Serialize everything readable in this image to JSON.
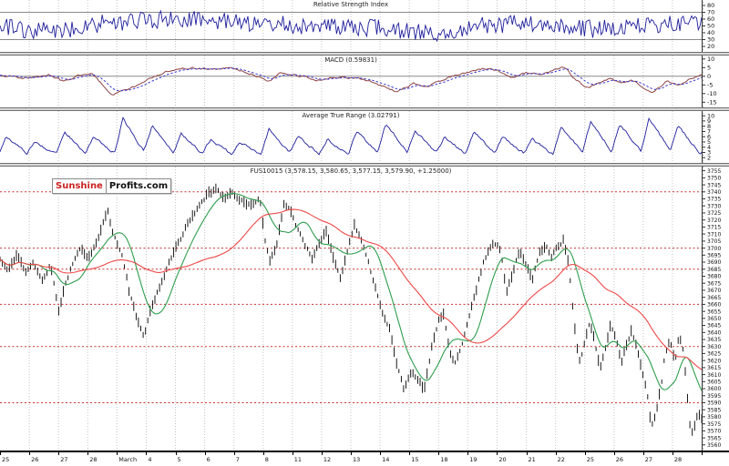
{
  "logo": {
    "part1": "Sunshine",
    "part2": "Profits.com"
  },
  "x_axis": {
    "labels": [
      "25",
      "26",
      "27",
      "28",
      "March",
      "4",
      "5",
      "6",
      "7",
      "8",
      "11",
      "12",
      "13",
      "14",
      "15",
      "18",
      "19",
      "20",
      "21",
      "22",
      "25",
      "26",
      "27",
      "28"
    ]
  },
  "chart_data": {
    "type": "multi-panel-financial",
    "days": 24,
    "rsi": {
      "type": "line",
      "title": "Relative Strength Index",
      "color": "#1e1e9c",
      "ylim": [
        12,
        88
      ],
      "yticks": [
        80,
        70,
        60,
        50,
        40,
        30,
        20
      ],
      "minor_step": 5,
      "hlines": [
        70,
        30
      ],
      "seed": 7,
      "noise_amp": 13,
      "points": 420,
      "smooth": false,
      "anchors": [
        [
          0,
          48
        ],
        [
          0.08,
          42
        ],
        [
          0.15,
          55
        ],
        [
          0.25,
          60
        ],
        [
          0.35,
          55
        ],
        [
          0.45,
          50
        ],
        [
          0.55,
          46
        ],
        [
          0.62,
          40
        ],
        [
          0.7,
          52
        ],
        [
          0.78,
          55
        ],
        [
          0.85,
          45
        ],
        [
          0.92,
          50
        ],
        [
          1,
          55
        ]
      ]
    },
    "macd": {
      "type": "line",
      "title": "MACD (0.59831)",
      "last_value": "0.59831",
      "color": "#8f4444",
      "signal_color": "#3b3bd0",
      "ylim": [
        -18,
        12
      ],
      "yticks": [
        10,
        5,
        0,
        -5,
        -10,
        -15
      ],
      "minor_step": 2.5,
      "hlines": [
        0
      ],
      "seed": 11,
      "noise_amp": 0.9,
      "points": 420,
      "smooth": true,
      "anchors": [
        [
          0,
          0.5
        ],
        [
          0.04,
          -1
        ],
        [
          0.07,
          1
        ],
        [
          0.09,
          -3
        ],
        [
          0.11,
          0.5
        ],
        [
          0.13,
          2
        ],
        [
          0.16,
          -11
        ],
        [
          0.19,
          -6
        ],
        [
          0.21,
          -2
        ],
        [
          0.24,
          3
        ],
        [
          0.27,
          5
        ],
        [
          0.3,
          4
        ],
        [
          0.33,
          4.5
        ],
        [
          0.36,
          1
        ],
        [
          0.385,
          -3
        ],
        [
          0.4,
          2
        ],
        [
          0.42,
          1
        ],
        [
          0.45,
          -2
        ],
        [
          0.47,
          -1
        ],
        [
          0.49,
          -0.5
        ],
        [
          0.52,
          -2
        ],
        [
          0.55,
          -6
        ],
        [
          0.565,
          -9
        ],
        [
          0.59,
          -4
        ],
        [
          0.61,
          -6
        ],
        [
          0.63,
          -2
        ],
        [
          0.66,
          2
        ],
        [
          0.69,
          4.5
        ],
        [
          0.71,
          3
        ],
        [
          0.73,
          -1
        ],
        [
          0.75,
          2
        ],
        [
          0.77,
          1
        ],
        [
          0.79,
          4
        ],
        [
          0.805,
          5.5
        ],
        [
          0.82,
          -2
        ],
        [
          0.84,
          -7
        ],
        [
          0.855,
          -3
        ],
        [
          0.87,
          -1
        ],
        [
          0.885,
          -4
        ],
        [
          0.9,
          -2
        ],
        [
          0.915,
          -6
        ],
        [
          0.93,
          -9
        ],
        [
          0.95,
          -3
        ],
        [
          0.97,
          -5
        ],
        [
          0.985,
          -1
        ],
        [
          1,
          0.6
        ]
      ]
    },
    "atr": {
      "type": "line",
      "title": "Average True Range (3.02791)",
      "last_value": "3.02791",
      "color": "#1e1e9c",
      "ylim": [
        1.0,
        10.9
      ],
      "yticks": [
        10,
        9,
        8,
        7,
        6,
        5,
        4,
        3,
        2
      ],
      "minor_step": 0.5,
      "hlines": [],
      "seed": 23,
      "noise_amp": 0.35,
      "points": 520,
      "smooth": true,
      "anchors": [
        [
          0,
          3
        ],
        [
          0.0083,
          6
        ],
        [
          0.0383,
          2.8
        ],
        [
          0.05,
          5
        ],
        [
          0.08,
          2.7
        ],
        [
          0.0917,
          7
        ],
        [
          0.1217,
          2.9
        ],
        [
          0.1333,
          6
        ],
        [
          0.1633,
          2.8
        ],
        [
          0.175,
          9.5
        ],
        [
          0.205,
          3.2
        ],
        [
          0.2167,
          8
        ],
        [
          0.2467,
          3
        ],
        [
          0.2583,
          6.5
        ],
        [
          0.2883,
          2.8
        ],
        [
          0.3,
          5.5
        ],
        [
          0.33,
          2.7
        ],
        [
          0.3417,
          5
        ],
        [
          0.3717,
          2.6
        ],
        [
          0.3833,
          7.5
        ],
        [
          0.4133,
          3
        ],
        [
          0.425,
          6
        ],
        [
          0.455,
          2.8
        ],
        [
          0.4667,
          5.5
        ],
        [
          0.4967,
          2.7
        ],
        [
          0.5083,
          7
        ],
        [
          0.5383,
          3
        ],
        [
          0.55,
          8.5
        ],
        [
          0.58,
          3.2
        ],
        [
          0.5917,
          7
        ],
        [
          0.6217,
          3
        ],
        [
          0.6333,
          6
        ],
        [
          0.6633,
          2.8
        ],
        [
          0.675,
          7
        ],
        [
          0.705,
          2.9
        ],
        [
          0.7167,
          6
        ],
        [
          0.7467,
          2.8
        ],
        [
          0.7583,
          5.5
        ],
        [
          0.7883,
          2.7
        ],
        [
          0.8,
          8
        ],
        [
          0.83,
          3.1
        ],
        [
          0.8417,
          9
        ],
        [
          0.8717,
          3.3
        ],
        [
          0.8833,
          8.5
        ],
        [
          0.9133,
          3.2
        ],
        [
          0.925,
          9.5
        ],
        [
          0.955,
          3.4
        ],
        [
          0.9667,
          8
        ],
        [
          0.9967,
          3
        ],
        [
          1,
          3.03
        ]
      ]
    },
    "price": {
      "type": "ohlc-bars",
      "title": "FUS10015 (3,578.15, 3,580.65, 3,577.15, 3,579.90, +1.25000)",
      "symbol": "FUS10015",
      "open": "3,578.15",
      "high": "3,580.65",
      "low": "3,577.15",
      "close": "3,579.90",
      "change": "+1.25000",
      "bar_color": "#000000",
      "ma_fast": {
        "window": 12,
        "color": "#2e9e4e"
      },
      "ma_slow": {
        "window": 45,
        "color": "#ee4848"
      },
      "level_lines": [
        3740,
        3700,
        3685,
        3660,
        3630,
        3590
      ],
      "level_color": "#c83232",
      "ylim": [
        3556,
        3758
      ],
      "ytick_min": 3560,
      "ytick_max": 3755,
      "ytick_step": 5,
      "minor_step": 2.5,
      "seed": 3,
      "noise_amp": 2.6,
      "points": 300,
      "smooth": true,
      "anchors": [
        [
          0,
          3692
        ],
        [
          0.012,
          3685
        ],
        [
          0.024,
          3696
        ],
        [
          0.036,
          3682
        ],
        [
          0.048,
          3690
        ],
        [
          0.06,
          3678
        ],
        [
          0.072,
          3688
        ],
        [
          0.084,
          3656
        ],
        [
          0.094,
          3676
        ],
        [
          0.105,
          3692
        ],
        [
          0.115,
          3699
        ],
        [
          0.125,
          3694
        ],
        [
          0.14,
          3705
        ],
        [
          0.153,
          3726
        ],
        [
          0.163,
          3708
        ],
        [
          0.175,
          3695
        ],
        [
          0.185,
          3668
        ],
        [
          0.196,
          3648
        ],
        [
          0.205,
          3636
        ],
        [
          0.215,
          3655
        ],
        [
          0.225,
          3668
        ],
        [
          0.235,
          3683
        ],
        [
          0.25,
          3700
        ],
        [
          0.265,
          3715
        ],
        [
          0.28,
          3728
        ],
        [
          0.295,
          3738
        ],
        [
          0.31,
          3742
        ],
        [
          0.32,
          3735
        ],
        [
          0.33,
          3741
        ],
        [
          0.345,
          3733
        ],
        [
          0.36,
          3728
        ],
        [
          0.37,
          3737
        ],
        [
          0.378,
          3705
        ],
        [
          0.385,
          3690
        ],
        [
          0.395,
          3703
        ],
        [
          0.405,
          3732
        ],
        [
          0.415,
          3726
        ],
        [
          0.425,
          3712
        ],
        [
          0.435,
          3700
        ],
        [
          0.445,
          3692
        ],
        [
          0.455,
          3705
        ],
        [
          0.465,
          3713
        ],
        [
          0.475,
          3695
        ],
        [
          0.485,
          3680
        ],
        [
          0.495,
          3698
        ],
        [
          0.505,
          3716
        ],
        [
          0.515,
          3705
        ],
        [
          0.525,
          3690
        ],
        [
          0.535,
          3672
        ],
        [
          0.545,
          3655
        ],
        [
          0.555,
          3645
        ],
        [
          0.565,
          3618
        ],
        [
          0.575,
          3600
        ],
        [
          0.585,
          3612
        ],
        [
          0.595,
          3608
        ],
        [
          0.605,
          3600
        ],
        [
          0.615,
          3628
        ],
        [
          0.625,
          3648
        ],
        [
          0.632,
          3655
        ],
        [
          0.64,
          3630
        ],
        [
          0.648,
          3616
        ],
        [
          0.658,
          3630
        ],
        [
          0.668,
          3650
        ],
        [
          0.678,
          3668
        ],
        [
          0.688,
          3688
        ],
        [
          0.698,
          3700
        ],
        [
          0.708,
          3704
        ],
        [
          0.715,
          3695
        ],
        [
          0.722,
          3668
        ],
        [
          0.73,
          3680
        ],
        [
          0.74,
          3698
        ],
        [
          0.75,
          3688
        ],
        [
          0.758,
          3676
        ],
        [
          0.768,
          3695
        ],
        [
          0.778,
          3703
        ],
        [
          0.785,
          3692
        ],
        [
          0.795,
          3700
        ],
        [
          0.803,
          3706
        ],
        [
          0.81,
          3690
        ],
        [
          0.818,
          3650
        ],
        [
          0.825,
          3618
        ],
        [
          0.832,
          3630
        ],
        [
          0.84,
          3648
        ],
        [
          0.848,
          3632
        ],
        [
          0.855,
          3614
        ],
        [
          0.862,
          3625
        ],
        [
          0.87,
          3645
        ],
        [
          0.878,
          3636
        ],
        [
          0.885,
          3618
        ],
        [
          0.893,
          3630
        ],
        [
          0.9,
          3640
        ],
        [
          0.908,
          3628
        ],
        [
          0.915,
          3612
        ],
        [
          0.922,
          3600
        ],
        [
          0.928,
          3572
        ],
        [
          0.935,
          3582
        ],
        [
          0.942,
          3600
        ],
        [
          0.948,
          3625
        ],
        [
          0.955,
          3634
        ],
        [
          0.962,
          3620
        ],
        [
          0.968,
          3640
        ],
        [
          0.974,
          3628
        ],
        [
          0.979,
          3598
        ],
        [
          0.985,
          3566
        ],
        [
          0.99,
          3574
        ],
        [
          0.995,
          3582
        ],
        [
          1,
          3580
        ]
      ]
    }
  }
}
